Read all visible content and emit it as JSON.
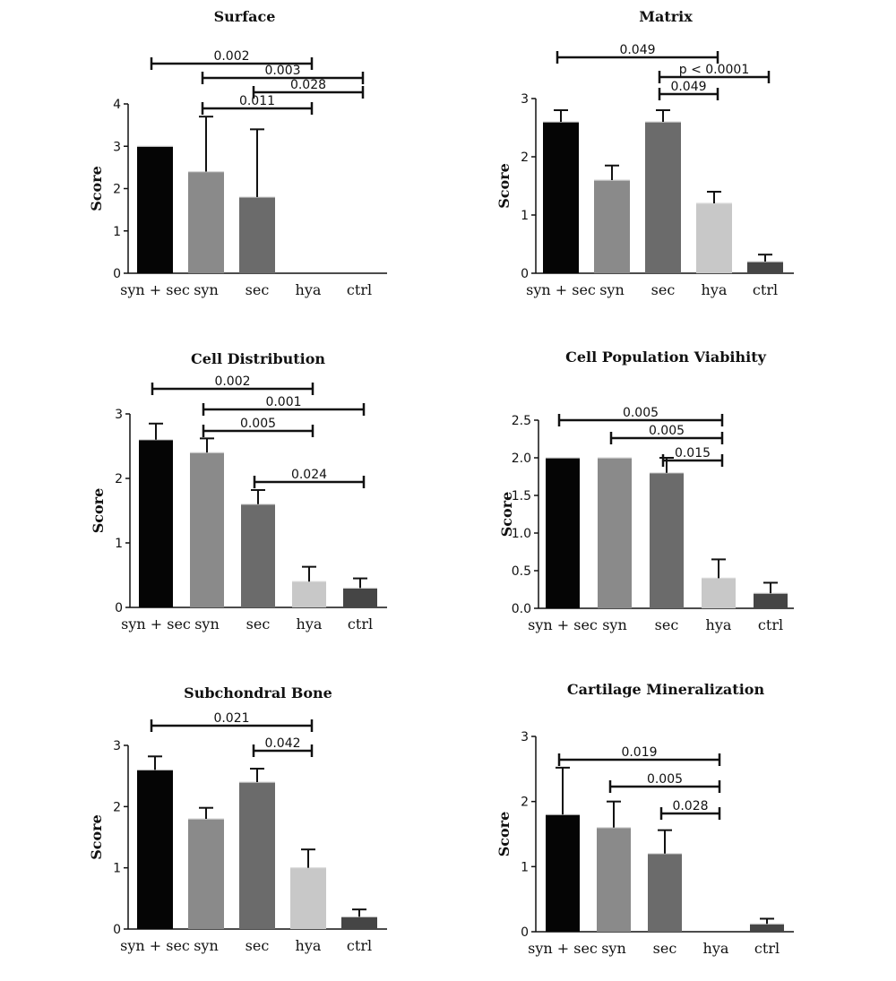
{
  "chart_data": [
    {
      "type": "bar",
      "title": "Surface",
      "ylabel": "Score",
      "categories": [
        "syn + sec",
        "syn",
        "sec",
        "hya",
        "ctrl"
      ],
      "values": [
        3.0,
        2.4,
        1.8,
        0,
        0
      ],
      "errors": [
        0,
        1.3,
        1.6,
        0,
        0
      ],
      "ylim": [
        0,
        4
      ],
      "yticks": [
        "0",
        "1",
        "2",
        "3",
        "4"
      ],
      "significance": [
        {
          "label": "0.002",
          "from": 0,
          "to": 3
        },
        {
          "label": "0.003",
          "from": 1,
          "to": 4
        },
        {
          "label": "0.028",
          "from": 2,
          "to": 4
        },
        {
          "label": "0.011",
          "from": 1,
          "to": 3
        }
      ]
    },
    {
      "type": "bar",
      "title": "Matrix",
      "ylabel": "Score",
      "categories": [
        "syn + sec",
        "syn",
        "sec",
        "hya",
        "ctrl"
      ],
      "values": [
        2.6,
        1.6,
        2.6,
        1.2,
        0.2
      ],
      "errors": [
        0.2,
        0.25,
        0.2,
        0.2,
        0.12
      ],
      "ylim": [
        0,
        3
      ],
      "yticks": [
        "0",
        "1",
        "2",
        "3"
      ],
      "significance": [
        {
          "label": "0.049",
          "from": 0,
          "to": 3
        },
        {
          "label": "p < 0.0001",
          "from": 2,
          "to": 4
        },
        {
          "label": "0.049",
          "from": 2,
          "to": 3
        }
      ]
    },
    {
      "type": "bar",
      "title": "Cell Distribution",
      "ylabel": "Score",
      "categories": [
        "syn + sec",
        "syn",
        "sec",
        "hya",
        "ctrl"
      ],
      "values": [
        2.6,
        2.4,
        1.6,
        0.4,
        0.3
      ],
      "errors": [
        0.25,
        0.22,
        0.22,
        0.23,
        0.15
      ],
      "ylim": [
        0,
        3
      ],
      "yticks": [
        "0",
        "1",
        "2",
        "3"
      ],
      "significance": [
        {
          "label": "0.002",
          "from": 0,
          "to": 3
        },
        {
          "label": "0.001",
          "from": 1,
          "to": 4
        },
        {
          "label": "0.005",
          "from": 1,
          "to": 3
        },
        {
          "label": "0.024",
          "from": 2,
          "to": 4
        }
      ]
    },
    {
      "type": "bar",
      "title": "Cell Population Viabihity",
      "ylabel": "Score",
      "categories": [
        "syn + sec",
        "syn",
        "sec",
        "hya",
        "ctrl"
      ],
      "values": [
        2.0,
        2.0,
        1.8,
        0.4,
        0.2
      ],
      "errors": [
        0,
        0,
        0.2,
        0.25,
        0.14
      ],
      "ylim": [
        0,
        2.5
      ],
      "yticks": [
        "0.0",
        "0.5",
        "1.0",
        "1.5",
        "2.0",
        "2.5"
      ],
      "significance": [
        {
          "label": "0.005",
          "from": 0,
          "to": 3
        },
        {
          "label": "0.005",
          "from": 1,
          "to": 3
        },
        {
          "label": "0.015",
          "from": 2,
          "to": 3
        }
      ]
    },
    {
      "type": "bar",
      "title": "Subchondral Bone",
      "ylabel": "Score",
      "categories": [
        "syn + sec",
        "syn",
        "sec",
        "hya",
        "ctrl"
      ],
      "values": [
        2.6,
        1.8,
        2.4,
        1.0,
        0.2
      ],
      "errors": [
        0.22,
        0.18,
        0.22,
        0.3,
        0.12
      ],
      "ylim": [
        0,
        3
      ],
      "yticks": [
        "0",
        "1",
        "2",
        "3"
      ],
      "significance": [
        {
          "label": "0.021",
          "from": 0,
          "to": 3
        },
        {
          "label": "0.042",
          "from": 2,
          "to": 3
        }
      ]
    },
    {
      "type": "bar",
      "title": "Cartilage Mineralization",
      "ylabel": "Score",
      "categories": [
        "syn + sec",
        "syn",
        "sec",
        "hya",
        "ctrl"
      ],
      "values": [
        1.8,
        1.6,
        1.2,
        0,
        0.12
      ],
      "errors": [
        0.72,
        0.4,
        0.36,
        0,
        0.08
      ],
      "ylim": [
        0,
        3
      ],
      "yticks": [
        "0",
        "1",
        "2",
        "3"
      ],
      "significance": [
        {
          "label": "0.019",
          "from": 0,
          "to": 3
        },
        {
          "label": "0.005",
          "from": 1,
          "to": 3
        },
        {
          "label": "0.028",
          "from": 2,
          "to": 3
        }
      ]
    }
  ],
  "colors": {
    "bars": [
      "#050505",
      "#8a8a8a",
      "#6b6b6b",
      "#c8c8c8",
      "#454545"
    ],
    "axis": "#111111"
  }
}
